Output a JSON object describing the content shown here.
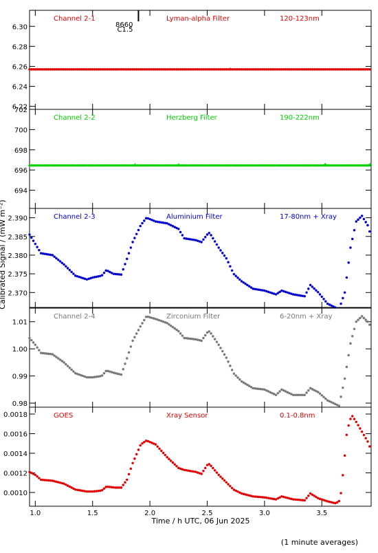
{
  "chart_data": {
    "type": "scatter",
    "ylabel": "Calibrated Signal / (mW m⁻²)",
    "xlabel": "Time / h UTC, 06 Jun 2025",
    "footnote": "(1 minute averages)",
    "xlim": [
      0.95,
      3.93
    ],
    "xticks": [
      1.0,
      1.5,
      2.0,
      2.5,
      3.0,
      3.5
    ],
    "xtick_labels": [
      "1.0",
      "1.5",
      "2.0",
      "2.5",
      "3.0",
      "3.5"
    ],
    "flare_marker": {
      "x": 1.9,
      "class": "C1.5",
      "number": "8660"
    },
    "panels": [
      {
        "name": "Channel 2-1",
        "filter": "Lyman-alpha Filter",
        "band": "120-123nm",
        "color": "#e00000",
        "ylim": [
          6.217,
          6.316
        ],
        "yticks": [
          6.22,
          6.24,
          6.26,
          6.28,
          6.3
        ],
        "ytick_labels": [
          "6.22",
          "6.24",
          "6.26",
          "6.28",
          "6.30"
        ],
        "curve": [
          [
            0.95,
            6.257
          ],
          [
            3.93,
            6.257
          ]
        ],
        "bumps": [
          [
            2.7,
            6.2575
          ]
        ]
      },
      {
        "name": "Channel 2-2",
        "filter": "Herzberg Filter",
        "band": "190-222nm",
        "color": "#00d000",
        "ylim": [
          692.2,
          702.0
        ],
        "yticks": [
          694,
          696,
          698,
          700,
          702
        ],
        "ytick_labels": [
          "694",
          "696",
          "698",
          "700",
          "702"
        ],
        "curve": [
          [
            0.95,
            696.45
          ],
          [
            3.93,
            696.45
          ]
        ],
        "bumps": [
          [
            1.87,
            696.55
          ],
          [
            2.25,
            696.55
          ],
          [
            3.53,
            696.58
          ],
          [
            3.92,
            696.58
          ]
        ]
      },
      {
        "name": "Channel 2-3",
        "filter": "Aluminium Filter",
        "band": "17-80nm + Xray",
        "color": "#0000cc",
        "ylim": [
          2.366,
          2.3925
        ],
        "yticks": [
          2.37,
          2.375,
          2.38,
          2.385,
          2.39
        ],
        "ytick_labels": [
          "2.370",
          "2.375",
          "2.380",
          "2.385",
          "2.390"
        ],
        "curve": [
          [
            0.95,
            2.3855
          ],
          [
            1.0,
            2.383
          ],
          [
            1.05,
            2.3805
          ],
          [
            1.15,
            2.38
          ],
          [
            1.25,
            2.3775
          ],
          [
            1.35,
            2.3745
          ],
          [
            1.45,
            2.3735
          ],
          [
            1.5,
            2.374
          ],
          [
            1.58,
            2.3745
          ],
          [
            1.62,
            2.376
          ],
          [
            1.68,
            2.375
          ],
          [
            1.75,
            2.3748
          ],
          [
            1.8,
            2.379
          ],
          [
            1.85,
            2.3835
          ],
          [
            1.92,
            2.388
          ],
          [
            1.97,
            2.39
          ],
          [
            2.05,
            2.389
          ],
          [
            2.15,
            2.3885
          ],
          [
            2.25,
            2.387
          ],
          [
            2.3,
            2.3845
          ],
          [
            2.4,
            2.384
          ],
          [
            2.45,
            2.3835
          ],
          [
            2.5,
            2.3855
          ],
          [
            2.52,
            2.386
          ],
          [
            2.6,
            2.382
          ],
          [
            2.67,
            2.379
          ],
          [
            2.73,
            2.375
          ],
          [
            2.8,
            2.373
          ],
          [
            2.9,
            2.371
          ],
          [
            3.0,
            2.3705
          ],
          [
            3.1,
            2.3695
          ],
          [
            3.15,
            2.3705
          ],
          [
            3.25,
            2.3695
          ],
          [
            3.35,
            2.369
          ],
          [
            3.4,
            2.372
          ],
          [
            3.47,
            2.37
          ],
          [
            3.55,
            2.367
          ],
          [
            3.65,
            2.3655
          ],
          [
            3.7,
            2.37
          ],
          [
            3.75,
            2.382
          ],
          [
            3.8,
            2.389
          ],
          [
            3.85,
            2.3905
          ],
          [
            3.9,
            2.388
          ],
          [
            3.93,
            2.385
          ]
        ],
        "bumps": []
      },
      {
        "name": "Channel 2-4",
        "filter": "Zirconium Filter",
        "band": "6-20nm + Xray",
        "color": "#777777",
        "ylim": [
          0.9785,
          1.015
        ],
        "yticks": [
          0.98,
          0.99,
          1.0,
          1.01
        ],
        "ytick_labels": [
          "0.98",
          "0.99",
          "1.00",
          "1.01"
        ],
        "curve": [
          [
            0.95,
            1.004
          ],
          [
            1.0,
            1.0015
          ],
          [
            1.05,
            0.9985
          ],
          [
            1.15,
            0.998
          ],
          [
            1.25,
            0.995
          ],
          [
            1.35,
            0.991
          ],
          [
            1.45,
            0.9895
          ],
          [
            1.5,
            0.9895
          ],
          [
            1.58,
            0.99
          ],
          [
            1.62,
            0.992
          ],
          [
            1.7,
            0.991
          ],
          [
            1.75,
            0.9905
          ],
          [
            1.8,
            0.9965
          ],
          [
            1.85,
            1.003
          ],
          [
            1.92,
            1.0085
          ],
          [
            1.97,
            1.012
          ],
          [
            2.05,
            1.011
          ],
          [
            2.15,
            1.0095
          ],
          [
            2.25,
            1.0065
          ],
          [
            2.3,
            1.004
          ],
          [
            2.4,
            1.0035
          ],
          [
            2.45,
            1.003
          ],
          [
            2.5,
            1.006
          ],
          [
            2.52,
            1.0065
          ],
          [
            2.6,
            1.0015
          ],
          [
            2.67,
            0.9965
          ],
          [
            2.73,
            0.991
          ],
          [
            2.8,
            0.988
          ],
          [
            2.9,
            0.9855
          ],
          [
            3.0,
            0.985
          ],
          [
            3.1,
            0.983
          ],
          [
            3.15,
            0.985
          ],
          [
            3.25,
            0.983
          ],
          [
            3.35,
            0.983
          ],
          [
            3.4,
            0.9855
          ],
          [
            3.47,
            0.984
          ],
          [
            3.55,
            0.981
          ],
          [
            3.65,
            0.979
          ],
          [
            3.7,
            0.989
          ],
          [
            3.75,
            1.002
          ],
          [
            3.8,
            1.01
          ],
          [
            3.85,
            1.012
          ],
          [
            3.9,
            1.01
          ],
          [
            3.93,
            1.008
          ]
        ],
        "bumps": []
      },
      {
        "name": "GOES",
        "filter": "Xray Sensor",
        "band": "0.1-0.8nm",
        "color": "#e00000",
        "ylim": [
          0.00086,
          0.00187
        ],
        "yticks": [
          0.001,
          0.0012,
          0.0014,
          0.0016,
          0.0018
        ],
        "ytick_labels": [
          "0.0010",
          "0.0012",
          "0.0014",
          "0.0016",
          "0.0018"
        ],
        "curve": [
          [
            0.95,
            0.00121
          ],
          [
            1.0,
            0.00118
          ],
          [
            1.05,
            0.00113
          ],
          [
            1.15,
            0.00112
          ],
          [
            1.25,
            0.00109
          ],
          [
            1.35,
            0.00103
          ],
          [
            1.45,
            0.00101
          ],
          [
            1.5,
            0.00101
          ],
          [
            1.58,
            0.00102
          ],
          [
            1.62,
            0.00106
          ],
          [
            1.7,
            0.00105
          ],
          [
            1.75,
            0.00105
          ],
          [
            1.8,
            0.00113
          ],
          [
            1.85,
            0.0013
          ],
          [
            1.92,
            0.00149
          ],
          [
            1.97,
            0.00153
          ],
          [
            2.05,
            0.00149
          ],
          [
            2.15,
            0.00136
          ],
          [
            2.25,
            0.00125
          ],
          [
            2.3,
            0.00123
          ],
          [
            2.4,
            0.00121
          ],
          [
            2.45,
            0.00119
          ],
          [
            2.5,
            0.00128
          ],
          [
            2.52,
            0.00129
          ],
          [
            2.6,
            0.00118
          ],
          [
            2.67,
            0.0011
          ],
          [
            2.73,
            0.00103
          ],
          [
            2.8,
            0.00099
          ],
          [
            2.9,
            0.00096
          ],
          [
            3.0,
            0.00095
          ],
          [
            3.1,
            0.00093
          ],
          [
            3.15,
            0.00096
          ],
          [
            3.25,
            0.00093
          ],
          [
            3.35,
            0.00092
          ],
          [
            3.4,
            0.00099
          ],
          [
            3.47,
            0.00094
          ],
          [
            3.55,
            0.00091
          ],
          [
            3.62,
            0.00089
          ],
          [
            3.66,
            0.00092
          ],
          [
            3.69,
            0.00125
          ],
          [
            3.72,
            0.00163
          ],
          [
            3.76,
            0.00179
          ],
          [
            3.8,
            0.00172
          ],
          [
            3.85,
            0.00162
          ],
          [
            3.9,
            0.00152
          ],
          [
            3.93,
            0.00143
          ]
        ],
        "bumps": []
      }
    ]
  }
}
